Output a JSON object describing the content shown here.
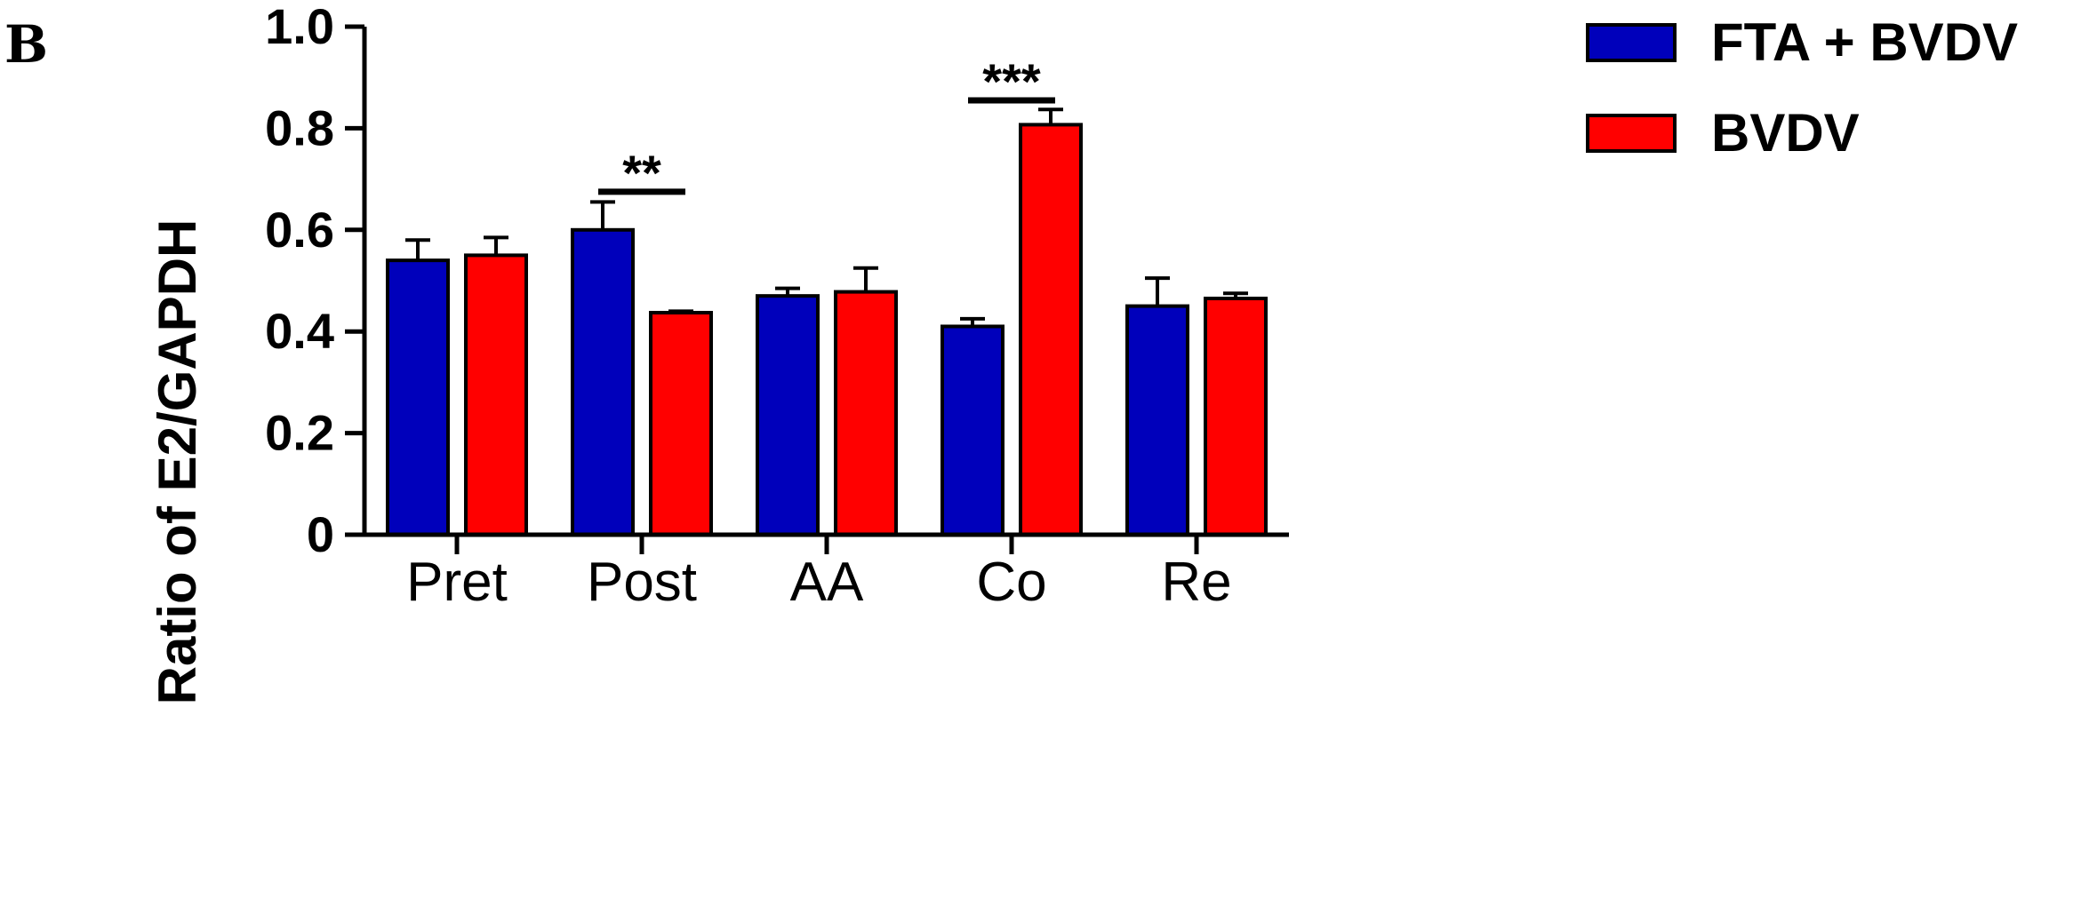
{
  "panel_letter": "B",
  "chart_data": {
    "type": "bar",
    "ylabel": "Ratio of E2/GAPDH",
    "ylim": [
      0,
      1.0
    ],
    "yticks": [
      0,
      0.2,
      0.4,
      0.6,
      0.8,
      1.0
    ],
    "ytick_labels": [
      "0",
      "0.2",
      "0.4",
      "0.6",
      "0.8",
      "1.0"
    ],
    "categories": [
      "Pret",
      "Post",
      "AA",
      "Co",
      "Re"
    ],
    "series": [
      {
        "name": "FTA + BVDV",
        "color": "#0000bb",
        "values": [
          0.54,
          0.6,
          0.47,
          0.41,
          0.45
        ],
        "errors": [
          0.04,
          0.055,
          0.015,
          0.015,
          0.055
        ]
      },
      {
        "name": "BVDV",
        "color": "#ff0000",
        "values": [
          0.55,
          0.437,
          0.478,
          0.807,
          0.465
        ],
        "errors": [
          0.035,
          0.003,
          0.047,
          0.03,
          0.01
        ]
      }
    ],
    "significance": [
      {
        "category": "Post",
        "label": "**",
        "y": 0.675
      },
      {
        "category": "Co",
        "label": "***",
        "y": 0.855
      }
    ],
    "legend_position": "top-right",
    "grid": false
  }
}
